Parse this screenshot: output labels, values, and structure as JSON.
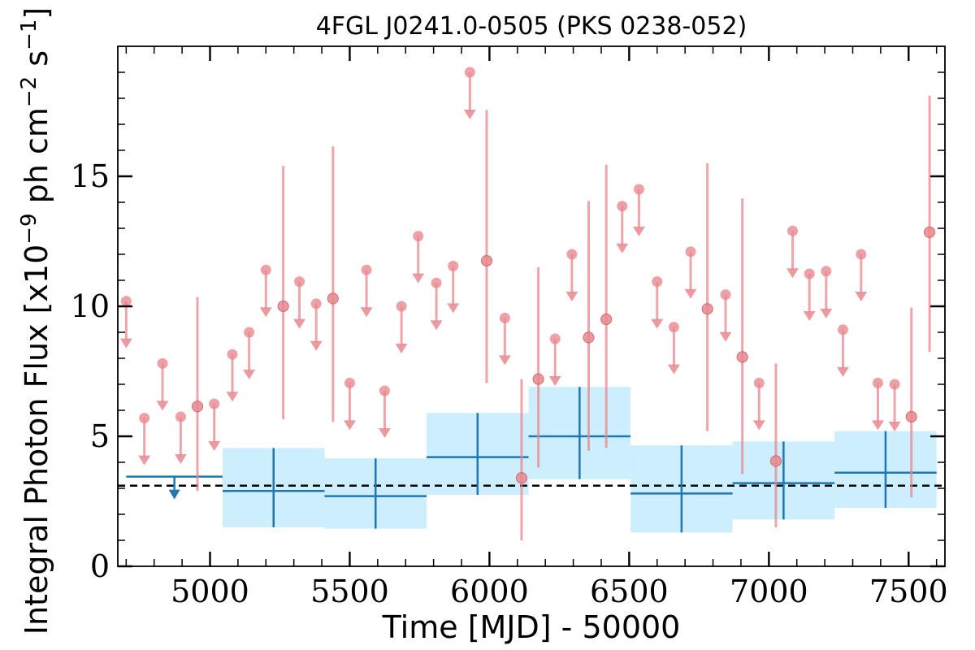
{
  "chart_data": {
    "type": "scatter",
    "title": "4FGL J0241.0-0505 (PKS 0238-052)",
    "xlabel": "Time [MJD] - 50000",
    "ylabel_main": "Integral Photon Flux [x10",
    "ylabel_exp1": "−9",
    "ylabel_mid": " ph cm",
    "ylabel_exp2": "−2",
    "ylabel_s": " s",
    "ylabel_exp3": "−1",
    "ylabel_end": "]",
    "xlim": [
      4670,
      7630
    ],
    "ylim": [
      0,
      20
    ],
    "xticks": [
      5000,
      5500,
      6000,
      6500,
      7000,
      7500
    ],
    "xtick_labels": [
      "5000",
      "5500",
      "6000",
      "6500",
      "7000",
      "7500"
    ],
    "yticks": [
      0,
      5,
      10,
      15
    ],
    "ytick_labels": [
      "0",
      "5",
      "10",
      "15"
    ],
    "reference_line": 3.1,
    "colors": {
      "short_bins": "#e8888e",
      "long_bins": "#1f77b4",
      "long_bins_band": "#cdeefd",
      "reference": "#000000"
    },
    "short_bin_detections": [
      {
        "x": 4955,
        "y": 6.15,
        "ylo": 2.9,
        "yhi": 10.35
      },
      {
        "x": 5262,
        "y": 10.0,
        "ylo": 5.65,
        "yhi": 15.4
      },
      {
        "x": 5440,
        "y": 10.3,
        "ylo": 5.55,
        "yhi": 16.15
      },
      {
        "x": 5990,
        "y": 11.75,
        "ylo": 7.05,
        "yhi": 17.55
      },
      {
        "x": 6115,
        "y": 3.4,
        "ylo": 1.0,
        "yhi": 7.2
      },
      {
        "x": 6175,
        "y": 7.2,
        "ylo": 3.8,
        "yhi": 11.5
      },
      {
        "x": 6355,
        "y": 8.8,
        "ylo": 4.45,
        "yhi": 14.05
      },
      {
        "x": 6418,
        "y": 9.5,
        "ylo": 4.55,
        "yhi": 15.45
      },
      {
        "x": 6780,
        "y": 9.9,
        "ylo": 5.2,
        "yhi": 15.5
      },
      {
        "x": 6905,
        "y": 8.05,
        "ylo": 3.55,
        "yhi": 14.15
      },
      {
        "x": 7025,
        "y": 4.05,
        "ylo": 1.5,
        "yhi": 7.8
      },
      {
        "x": 7510,
        "y": 5.75,
        "ylo": 2.65,
        "yhi": 9.95
      },
      {
        "x": 7575,
        "y": 12.85,
        "ylo": 8.25,
        "yhi": 18.1
      }
    ],
    "short_bin_upper_limits": [
      {
        "x": 4700,
        "y": 10.2
      },
      {
        "x": 4765,
        "y": 5.7
      },
      {
        "x": 4830,
        "y": 7.8
      },
      {
        "x": 4895,
        "y": 5.75
      },
      {
        "x": 5015,
        "y": 6.25
      },
      {
        "x": 5080,
        "y": 8.15
      },
      {
        "x": 5140,
        "y": 9.0
      },
      {
        "x": 5200,
        "y": 11.4
      },
      {
        "x": 5320,
        "y": 10.95
      },
      {
        "x": 5380,
        "y": 10.1
      },
      {
        "x": 5500,
        "y": 7.05
      },
      {
        "x": 5560,
        "y": 11.4
      },
      {
        "x": 5625,
        "y": 6.75
      },
      {
        "x": 5685,
        "y": 10.0
      },
      {
        "x": 5745,
        "y": 12.7
      },
      {
        "x": 5810,
        "y": 10.9
      },
      {
        "x": 5870,
        "y": 11.55
      },
      {
        "x": 5930,
        "y": 19.0
      },
      {
        "x": 6055,
        "y": 9.55
      },
      {
        "x": 6235,
        "y": 8.75
      },
      {
        "x": 6295,
        "y": 12.0
      },
      {
        "x": 6475,
        "y": 13.85
      },
      {
        "x": 6535,
        "y": 14.5
      },
      {
        "x": 6600,
        "y": 10.95
      },
      {
        "x": 6660,
        "y": 9.2
      },
      {
        "x": 6720,
        "y": 12.1
      },
      {
        "x": 6845,
        "y": 10.45
      },
      {
        "x": 6965,
        "y": 7.05
      },
      {
        "x": 7085,
        "y": 12.9
      },
      {
        "x": 7145,
        "y": 11.25
      },
      {
        "x": 7205,
        "y": 11.35
      },
      {
        "x": 7265,
        "y": 9.1
      },
      {
        "x": 7330,
        "y": 12.0
      },
      {
        "x": 7390,
        "y": 7.05
      },
      {
        "x": 7450,
        "y": 7.0
      }
    ],
    "long_bin_upper_limit": {
      "x0": 4700,
      "x1": 5045,
      "y": 3.45
    },
    "long_bins": [
      {
        "x0": 5045,
        "x1": 5410,
        "y": 2.9,
        "ylo": 1.5,
        "yhi": 4.55
      },
      {
        "x0": 5410,
        "x1": 5775,
        "y": 2.7,
        "ylo": 1.45,
        "yhi": 4.15
      },
      {
        "x0": 5775,
        "x1": 6140,
        "y": 4.2,
        "ylo": 2.75,
        "yhi": 5.9
      },
      {
        "x0": 6140,
        "x1": 6505,
        "y": 5.0,
        "ylo": 3.35,
        "yhi": 6.9
      },
      {
        "x0": 6505,
        "x1": 6870,
        "y": 2.8,
        "ylo": 1.3,
        "yhi": 4.65
      },
      {
        "x0": 6870,
        "x1": 7235,
        "y": 3.2,
        "ylo": 1.8,
        "yhi": 4.8
      },
      {
        "x0": 7235,
        "x1": 7600,
        "y": 3.6,
        "ylo": 2.25,
        "yhi": 5.2
      }
    ]
  }
}
